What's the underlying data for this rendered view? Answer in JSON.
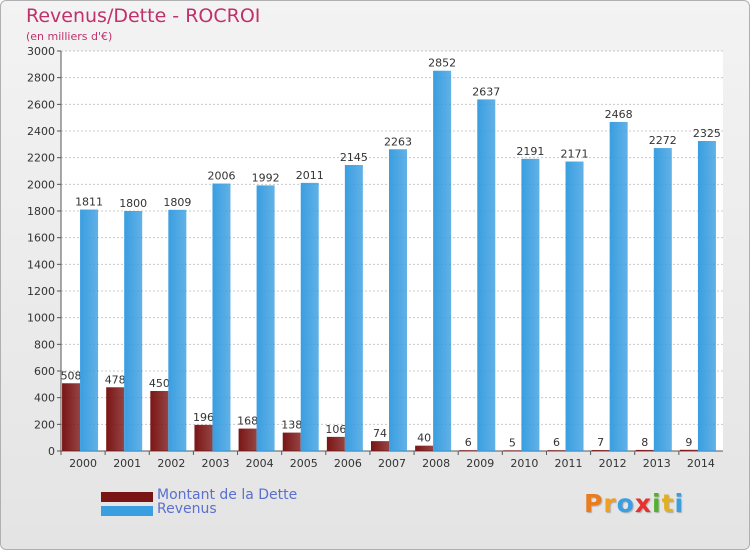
{
  "header": {
    "title": "Revenus/Dette - ROCROI",
    "subtitle": "(en milliers d'€)"
  },
  "chart_data": {
    "type": "bar",
    "categories": [
      "2000",
      "2001",
      "2002",
      "2003",
      "2004",
      "2005",
      "2006",
      "2007",
      "2008",
      "2009",
      "2010",
      "2011",
      "2012",
      "2013",
      "2014"
    ],
    "series": [
      {
        "name": "Montant de la Dette",
        "color": "#7a1515",
        "values": [
          508,
          478,
          450,
          196,
          168,
          138,
          106,
          74,
          40,
          6,
          5,
          6,
          7,
          8,
          9
        ]
      },
      {
        "name": "Revenus",
        "color": "#3a9ee0",
        "values": [
          1811,
          1800,
          1809,
          2006,
          1992,
          2011,
          2145,
          2263,
          2852,
          2637,
          2191,
          2171,
          2468,
          2272,
          2325
        ]
      }
    ],
    "yticks": [
      0,
      200,
      400,
      600,
      800,
      1000,
      1200,
      1400,
      1600,
      1800,
      2000,
      2200,
      2400,
      2600,
      2800,
      3000
    ],
    "ylim": [
      0,
      3000
    ],
    "grid": true,
    "legend": "bottom-left"
  },
  "legend": {
    "items": [
      {
        "label": "Montant de la Dette",
        "color": "#7a1515"
      },
      {
        "label": "Revenus",
        "color": "#3a9ee0"
      }
    ]
  },
  "logo": {
    "letters": [
      "P",
      "r",
      "o",
      "x",
      "i",
      "t",
      "i"
    ],
    "colors": [
      "#e87c1e",
      "#f0a020",
      "#3a9ee0",
      "#e83030",
      "#56b030",
      "#e0b020",
      "#3a9ee0"
    ]
  }
}
